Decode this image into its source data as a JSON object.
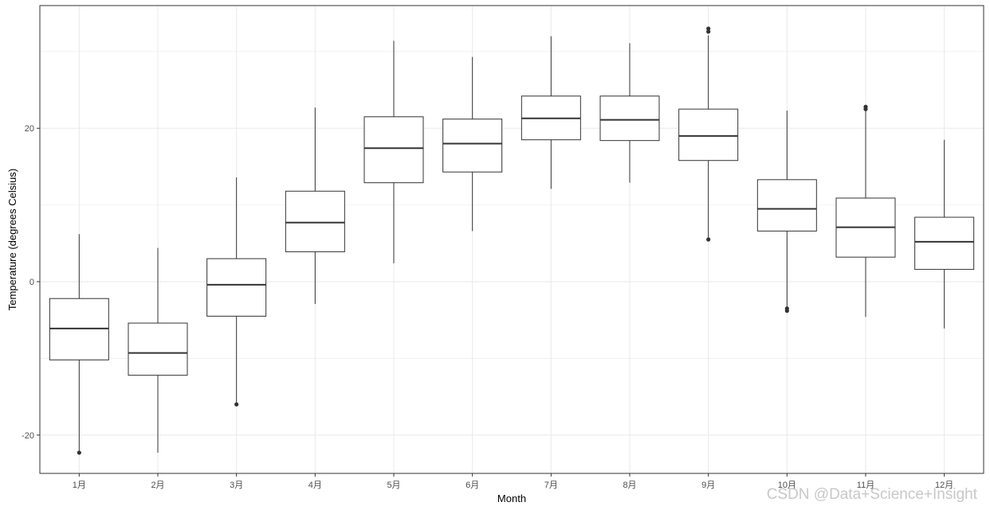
{
  "chart_data": {
    "type": "box",
    "xlabel": "Month",
    "ylabel": "Temperature (degrees Celsius)",
    "ylim": [
      -25,
      36
    ],
    "yticks": [
      -20,
      0,
      20
    ],
    "grid": true,
    "categories": [
      "1月",
      "2月",
      "3月",
      "4月",
      "5月",
      "6月",
      "7月",
      "8月",
      "9月",
      "10月",
      "11月",
      "12月"
    ],
    "boxes": [
      {
        "min": -22.3,
        "q1": -10.2,
        "median": -6.1,
        "q3": -2.2,
        "max": 6.2,
        "outliers": [
          -22.3
        ]
      },
      {
        "min": -22.3,
        "q1": -12.2,
        "median": -9.3,
        "q3": -5.4,
        "max": 4.4,
        "outliers": []
      },
      {
        "min": -16.0,
        "q1": -4.5,
        "median": -0.4,
        "q3": 3.0,
        "max": 13.6,
        "outliers": [
          -16.0
        ]
      },
      {
        "min": -2.9,
        "q1": 3.9,
        "median": 7.7,
        "q3": 11.8,
        "max": 22.7,
        "outliers": []
      },
      {
        "min": 2.4,
        "q1": 12.9,
        "median": 17.4,
        "q3": 21.5,
        "max": 31.4,
        "outliers": []
      },
      {
        "min": 6.6,
        "q1": 14.3,
        "median": 18.0,
        "q3": 21.2,
        "max": 29.3,
        "outliers": []
      },
      {
        "min": 12.1,
        "q1": 18.5,
        "median": 21.3,
        "q3": 24.2,
        "max": 32.0,
        "outliers": []
      },
      {
        "min": 12.9,
        "q1": 18.4,
        "median": 21.1,
        "q3": 24.2,
        "max": 31.1,
        "outliers": []
      },
      {
        "min": 5.5,
        "q1": 15.8,
        "median": 19.0,
        "q3": 22.5,
        "max": 32.1,
        "outliers": [
          5.5,
          32.6,
          33.0
        ]
      },
      {
        "min": -3.3,
        "q1": 6.6,
        "median": 9.5,
        "q3": 13.3,
        "max": 22.3,
        "outliers": [
          -3.5,
          -3.8
        ]
      },
      {
        "min": -4.6,
        "q1": 3.2,
        "median": 7.1,
        "q3": 10.9,
        "max": 22.3,
        "outliers": [
          22.5,
          22.8
        ]
      },
      {
        "min": -6.1,
        "q1": 1.6,
        "median": 5.2,
        "q3": 8.4,
        "max": 18.5,
        "outliers": []
      }
    ],
    "colors": {
      "box_stroke": "#333333",
      "grid": "#ebebeb",
      "panel_border": "#333333",
      "tick_text": "#4d4d4d",
      "outlier": "#333333"
    }
  },
  "watermark": "CSDN @Data+Science+Insight"
}
